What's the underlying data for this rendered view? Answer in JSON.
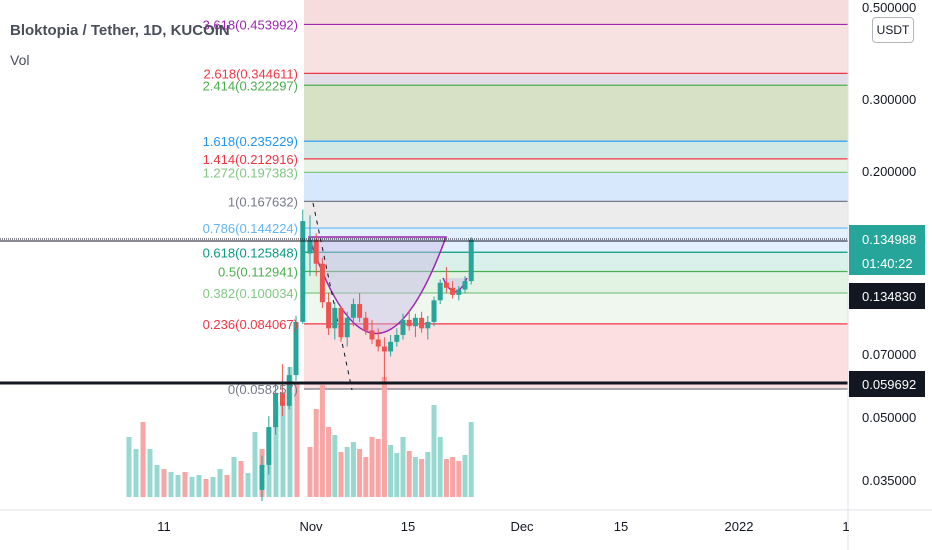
{
  "header": {
    "symbol_title": "Bloktopia / Tether, 1D, KUCOIN",
    "volume_label": "Vol"
  },
  "currency_button": "USDT",
  "chart_data": {
    "type": "candlestick",
    "title": "Bloktopia / Tether, 1D, KUCOIN",
    "y_scale": "log",
    "price_axis_ticks": [
      "0.500000",
      "0.300000",
      "0.200000",
      "0.070000",
      "0.050000",
      "0.035000"
    ],
    "time_axis_ticks": [
      "11",
      "Nov",
      "15",
      "Dec",
      "15",
      "2022",
      "1"
    ],
    "price_labels": {
      "last_price": "0.134988",
      "countdown": "01:40:22",
      "line_price": "0.134830",
      "support_price": "0.059692"
    },
    "fibonacci_levels": [
      {
        "label": "3.618(0.453992)",
        "value": 0.453992,
        "color": "#9c27b0"
      },
      {
        "label": "2.618(0.344611)",
        "value": 0.344611,
        "color": "#f23645"
      },
      {
        "label": "2.414(0.322297)",
        "value": 0.322297,
        "color": "#4caf50"
      },
      {
        "label": "1.618(0.235229)",
        "value": 0.235229,
        "color": "#2196f3"
      },
      {
        "label": "1.414(0.212916)",
        "value": 0.212916,
        "color": "#f23645"
      },
      {
        "label": "1.272(0.197383)",
        "value": 0.197383,
        "color": "#81c784"
      },
      {
        "label": "1(0.167632)",
        "value": 0.167632,
        "color": "#787b86"
      },
      {
        "label": "0.786(0.144224)",
        "value": 0.144224,
        "color": "#64b5f6"
      },
      {
        "label": "0.618(0.125848)",
        "value": 0.125848,
        "color": "#089981"
      },
      {
        "label": "0.5(0.112941)",
        "value": 0.112941,
        "color": "#4caf50"
      },
      {
        "label": "0.382(0.100034)",
        "value": 0.100034,
        "color": "#81c784"
      },
      {
        "label": "0.236(0.084067)",
        "value": 0.084067,
        "color": "#f23645"
      },
      {
        "label": "0(0.058257)",
        "value": 0.058257,
        "color": "#787b86"
      }
    ],
    "fib_zone_fills": [
      "#f7e1e1",
      "#e3dde7",
      "#d7e1c6",
      "#d0e9e4",
      "#e8f2e6",
      "#d7e8fd",
      "#ececec",
      "#e3f0fd",
      "#daf0ea",
      "#e2f3e4",
      "#f0f7ee",
      "#fcdfe0"
    ],
    "candles": [
      {
        "o": 0.125,
        "h": 0.155,
        "l": 0.11,
        "c": 0.135
      },
      {
        "o": 0.135,
        "h": 0.14,
        "l": 0.11,
        "c": 0.118
      },
      {
        "o": 0.118,
        "h": 0.122,
        "l": 0.092,
        "c": 0.095
      },
      {
        "o": 0.095,
        "h": 0.1,
        "l": 0.079,
        "c": 0.082
      },
      {
        "o": 0.082,
        "h": 0.095,
        "l": 0.077,
        "c": 0.092
      },
      {
        "o": 0.092,
        "h": 0.093,
        "l": 0.076,
        "c": 0.078
      },
      {
        "o": 0.078,
        "h": 0.09,
        "l": 0.074,
        "c": 0.087
      },
      {
        "o": 0.087,
        "h": 0.097,
        "l": 0.083,
        "c": 0.094
      },
      {
        "o": 0.094,
        "h": 0.1,
        "l": 0.085,
        "c": 0.087
      },
      {
        "o": 0.087,
        "h": 0.09,
        "l": 0.079,
        "c": 0.081
      },
      {
        "o": 0.081,
        "h": 0.086,
        "l": 0.075,
        "c": 0.077
      },
      {
        "o": 0.077,
        "h": 0.082,
        "l": 0.072,
        "c": 0.074
      },
      {
        "o": 0.074,
        "h": 0.078,
        "l": 0.06,
        "c": 0.072
      },
      {
        "o": 0.072,
        "h": 0.079,
        "l": 0.07,
        "c": 0.076
      },
      {
        "o": 0.076,
        "h": 0.082,
        "l": 0.074,
        "c": 0.079
      },
      {
        "o": 0.079,
        "h": 0.089,
        "l": 0.077,
        "c": 0.086
      },
      {
        "o": 0.086,
        "h": 0.091,
        "l": 0.081,
        "c": 0.083
      },
      {
        "o": 0.083,
        "h": 0.089,
        "l": 0.078,
        "c": 0.087
      },
      {
        "o": 0.087,
        "h": 0.09,
        "l": 0.08,
        "c": 0.082
      },
      {
        "o": 0.082,
        "h": 0.088,
        "l": 0.077,
        "c": 0.085
      },
      {
        "o": 0.085,
        "h": 0.098,
        "l": 0.083,
        "c": 0.096
      },
      {
        "o": 0.096,
        "h": 0.108,
        "l": 0.094,
        "c": 0.106
      },
      {
        "o": 0.106,
        "h": 0.116,
        "l": 0.1,
        "c": 0.103
      },
      {
        "o": 0.103,
        "h": 0.107,
        "l": 0.097,
        "c": 0.099
      },
      {
        "o": 0.099,
        "h": 0.104,
        "l": 0.096,
        "c": 0.102
      },
      {
        "o": 0.102,
        "h": 0.11,
        "l": 0.1,
        "c": 0.107
      },
      {
        "o": 0.107,
        "h": 0.137,
        "l": 0.105,
        "c": 0.135
      }
    ],
    "volume": [
      {
        "v": 50,
        "up": false
      },
      {
        "v": 88,
        "up": false
      },
      {
        "v": 112,
        "up": false
      },
      {
        "v": 70,
        "up": false
      },
      {
        "v": 62,
        "up": true
      },
      {
        "v": 45,
        "up": false
      },
      {
        "v": 50,
        "up": true
      },
      {
        "v": 55,
        "up": true
      },
      {
        "v": 48,
        "up": false
      },
      {
        "v": 40,
        "up": false
      },
      {
        "v": 60,
        "up": false
      },
      {
        "v": 58,
        "up": false
      },
      {
        "v": 120,
        "up": false
      },
      {
        "v": 52,
        "up": true
      },
      {
        "v": 44,
        "up": true
      },
      {
        "v": 60,
        "up": true
      },
      {
        "v": 46,
        "up": false
      },
      {
        "v": 40,
        "up": true
      },
      {
        "v": 38,
        "up": false
      },
      {
        "v": 45,
        "up": true
      },
      {
        "v": 92,
        "up": true
      },
      {
        "v": 60,
        "up": true
      },
      {
        "v": 38,
        "up": false
      },
      {
        "v": 40,
        "up": false
      },
      {
        "v": 36,
        "up": false
      },
      {
        "v": 42,
        "up": true
      },
      {
        "v": 75,
        "up": true
      }
    ],
    "volume_history": [
      {
        "v": 60,
        "up": true
      },
      {
        "v": 48,
        "up": true
      },
      {
        "v": 75,
        "up": false
      },
      {
        "v": 48,
        "up": true
      },
      {
        "v": 32,
        "up": true
      },
      {
        "v": 28,
        "up": false
      },
      {
        "v": 25,
        "up": true
      },
      {
        "v": 22,
        "up": true
      },
      {
        "v": 25,
        "up": false
      },
      {
        "v": 20,
        "up": true
      },
      {
        "v": 22,
        "up": true
      },
      {
        "v": 18,
        "up": false
      },
      {
        "v": 20,
        "up": true
      },
      {
        "v": 28,
        "up": true
      },
      {
        "v": 22,
        "up": false
      },
      {
        "v": 40,
        "up": true
      },
      {
        "v": 36,
        "up": false
      },
      {
        "v": 24,
        "up": true
      },
      {
        "v": 65,
        "up": true
      },
      {
        "v": 48,
        "up": false
      },
      {
        "v": 70,
        "up": true
      },
      {
        "v": 95,
        "up": true
      },
      {
        "v": 105,
        "up": true
      },
      {
        "v": 130,
        "up": true
      },
      {
        "v": 115,
        "up": false
      }
    ],
    "rally_candles": [
      {
        "o": 0.033,
        "h": 0.04,
        "l": 0.031,
        "c": 0.038
      },
      {
        "o": 0.038,
        "h": 0.05,
        "l": 0.036,
        "c": 0.047
      },
      {
        "o": 0.047,
        "h": 0.06,
        "l": 0.045,
        "c": 0.057
      },
      {
        "o": 0.057,
        "h": 0.067,
        "l": 0.05,
        "c": 0.053
      },
      {
        "o": 0.053,
        "h": 0.066,
        "l": 0.052,
        "c": 0.063
      },
      {
        "o": 0.063,
        "h": 0.088,
        "l": 0.061,
        "c": 0.085
      },
      {
        "o": 0.085,
        "h": 0.16,
        "l": 0.084,
        "c": 0.15
      }
    ],
    "colors": {
      "up": "#26a69a",
      "down": "#ef5350",
      "up_vol": "#97d8d1",
      "down_vol": "#f7a6a5"
    }
  }
}
